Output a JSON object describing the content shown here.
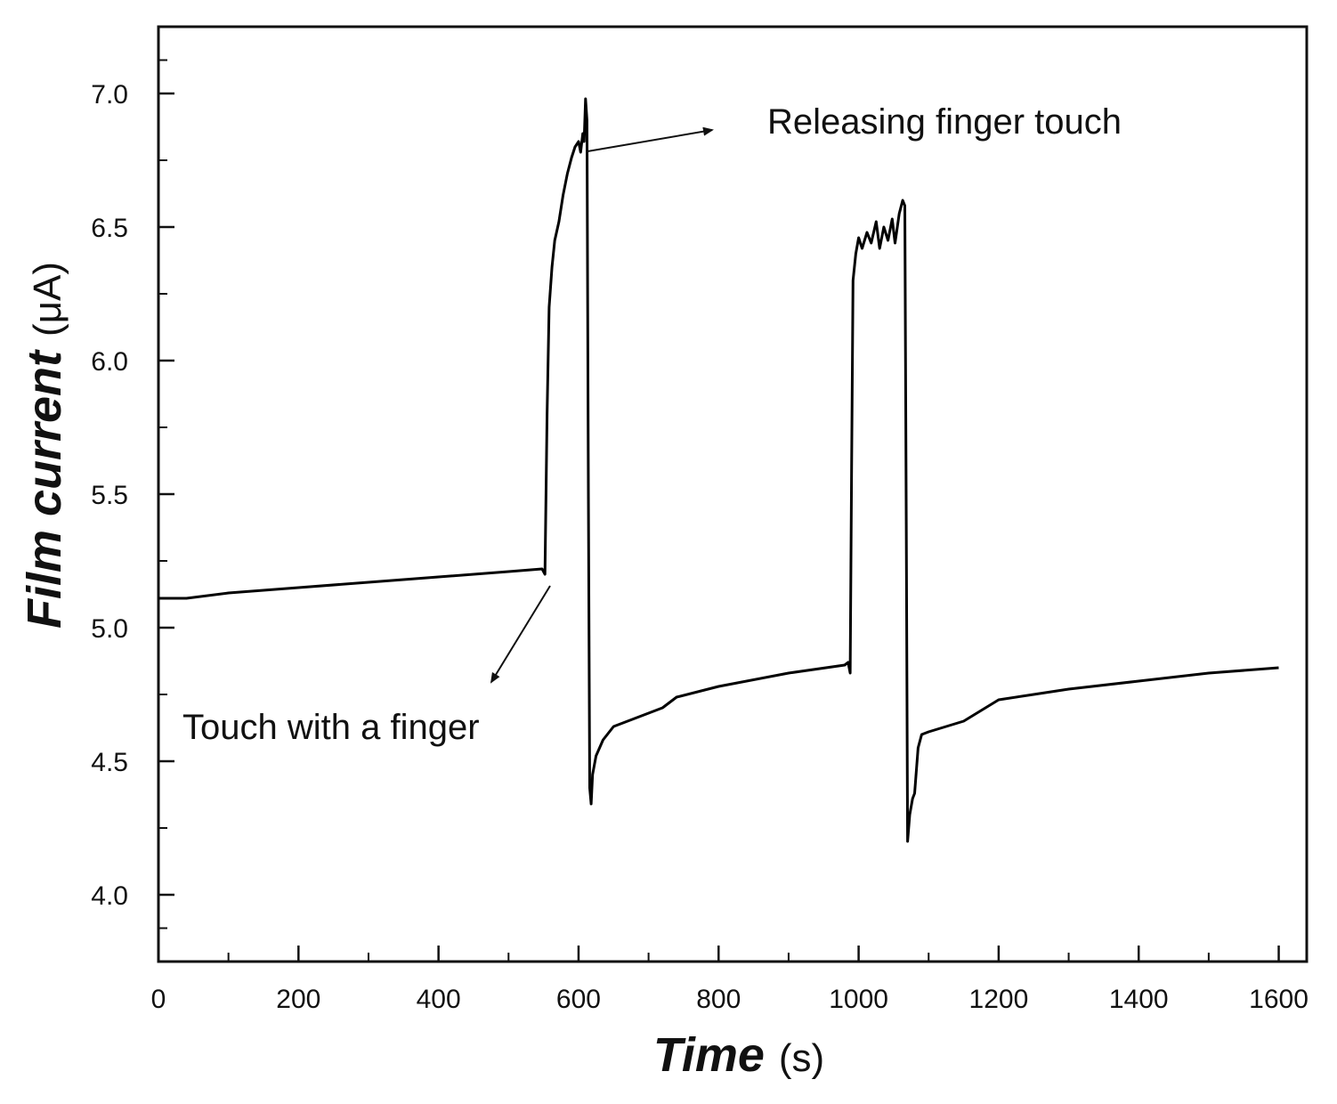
{
  "chart_data": {
    "type": "line",
    "xlabel": {
      "main": "Time",
      "unit": "(s)"
    },
    "ylabel": {
      "main": "Film current",
      "unit": "(μA)"
    },
    "xlim": [
      0,
      1640
    ],
    "ylim": [
      3.75,
      7.25
    ],
    "x_major_ticks": [
      0,
      200,
      400,
      600,
      800,
      1000,
      1200,
      1400,
      1600
    ],
    "x_tick_labels": [
      "0",
      "200",
      "400",
      "600",
      "800",
      "1000",
      "1200",
      "1400",
      "1600"
    ],
    "y_major_ticks": [
      4.0,
      4.5,
      5.0,
      5.5,
      6.0,
      6.5,
      7.0
    ],
    "y_tick_labels": [
      "4.0",
      "4.5",
      "5.0",
      "5.5",
      "6.0",
      "6.5",
      "7.0"
    ],
    "grid": false,
    "series": [
      {
        "color": "#000000",
        "points": [
          [
            0,
            5.11
          ],
          [
            40,
            5.11
          ],
          [
            100,
            5.13
          ],
          [
            200,
            5.15
          ],
          [
            300,
            5.17
          ],
          [
            400,
            5.19
          ],
          [
            500,
            5.21
          ],
          [
            548,
            5.22
          ],
          [
            552,
            5.2
          ],
          [
            555,
            5.8
          ],
          [
            558,
            6.2
          ],
          [
            562,
            6.35
          ],
          [
            566,
            6.45
          ],
          [
            572,
            6.52
          ],
          [
            578,
            6.62
          ],
          [
            584,
            6.7
          ],
          [
            590,
            6.76
          ],
          [
            595,
            6.8
          ],
          [
            600,
            6.82
          ],
          [
            603,
            6.78
          ],
          [
            606,
            6.85
          ],
          [
            608,
            6.82
          ],
          [
            610,
            6.98
          ],
          [
            612,
            6.9
          ],
          [
            614,
            5.5
          ],
          [
            616,
            4.4
          ],
          [
            618,
            4.34
          ],
          [
            620,
            4.45
          ],
          [
            625,
            4.52
          ],
          [
            635,
            4.58
          ],
          [
            650,
            4.63
          ],
          [
            680,
            4.66
          ],
          [
            700,
            4.68
          ],
          [
            720,
            4.7
          ],
          [
            740,
            4.74
          ],
          [
            800,
            4.78
          ],
          [
            900,
            4.83
          ],
          [
            980,
            4.86
          ],
          [
            985,
            4.87
          ],
          [
            988,
            4.83
          ],
          [
            990,
            5.6
          ],
          [
            992,
            6.3
          ],
          [
            996,
            6.4
          ],
          [
            1000,
            6.46
          ],
          [
            1005,
            6.42
          ],
          [
            1012,
            6.48
          ],
          [
            1018,
            6.44
          ],
          [
            1025,
            6.52
          ],
          [
            1030,
            6.42
          ],
          [
            1036,
            6.5
          ],
          [
            1042,
            6.45
          ],
          [
            1048,
            6.53
          ],
          [
            1052,
            6.44
          ],
          [
            1058,
            6.55
          ],
          [
            1063,
            6.6
          ],
          [
            1066,
            6.58
          ],
          [
            1068,
            5.4
          ],
          [
            1070,
            4.2
          ],
          [
            1073,
            4.3
          ],
          [
            1077,
            4.36
          ],
          [
            1080,
            4.38
          ],
          [
            1085,
            4.55
          ],
          [
            1090,
            4.6
          ],
          [
            1100,
            4.61
          ],
          [
            1150,
            4.65
          ],
          [
            1200,
            4.73
          ],
          [
            1250,
            4.75
          ],
          [
            1300,
            4.77
          ],
          [
            1400,
            4.8
          ],
          [
            1500,
            4.83
          ],
          [
            1600,
            4.85
          ]
        ]
      }
    ],
    "annotations": [
      {
        "text": "Releasing finger touch"
      },
      {
        "text": "Touch with a finger"
      }
    ]
  }
}
